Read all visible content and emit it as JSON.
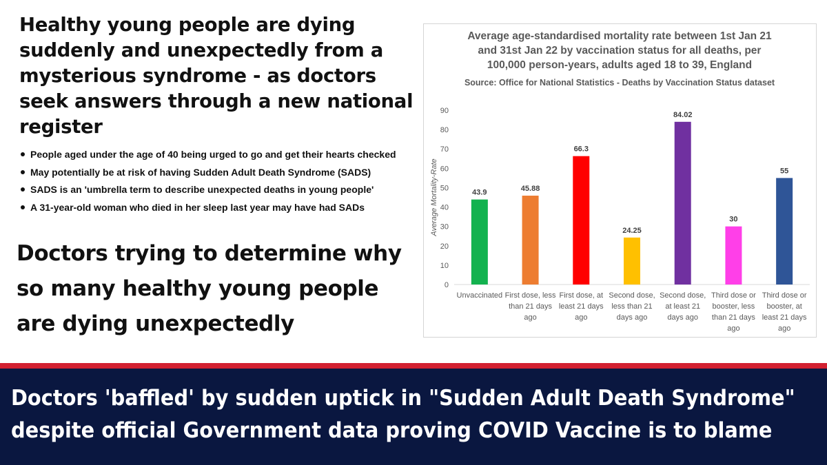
{
  "headline": "Healthy young people are dying suddenly and unexpectedly from a mysterious syndrome - as doctors seek answers through a new national register",
  "bullets": [
    "People aged under the age of 40 being urged to go and get their hearts checked",
    "May potentially be at risk of having Sudden Adult Death Syndrome (SADS)",
    "SADS is an 'umbrella term to describe unexpected deaths in young people'",
    "A 31-year-old woman who died in her sleep last year may have had SADs"
  ],
  "subheadline": "Doctors trying to determine why so many healthy young people are dying unexpectedly",
  "banner": {
    "line1": "Doctors 'baffled' by sudden uptick in \"Sudden Adult Death Syndrome\"",
    "line2": "despite official Government data proving COVID Vaccine is to blame"
  },
  "chart_data": {
    "type": "bar",
    "title_lines": [
      "Average age-standardised mortality rate between 1st Jan 21",
      "and  31st Jan 22 by vaccination status for all deaths, per",
      "100,000 person-years, adults aged 18 to 39, England"
    ],
    "subtitle": "Source: Office for National Statistics - Deaths by Vaccination Status dataset",
    "ylabel": "Average Mortality-Rate",
    "xlabel": "",
    "ylim": [
      0,
      90
    ],
    "yticks": [
      0,
      10,
      20,
      30,
      40,
      50,
      60,
      70,
      80,
      90
    ],
    "grid": false,
    "categories": [
      [
        "Unvaccinated"
      ],
      [
        "First dose, less",
        "than 21 days",
        "ago"
      ],
      [
        "First dose, at",
        "least 21 days",
        "ago"
      ],
      [
        "Second dose,",
        "less than 21",
        "days ago"
      ],
      [
        "Second dose,",
        "at least 21",
        "days ago"
      ],
      [
        "Third dose or",
        "booster, less",
        "than 21 days",
        "ago"
      ],
      [
        "Third dose or",
        "booster, at",
        "least 21 days",
        "ago"
      ]
    ],
    "values": [
      43.9,
      45.88,
      66.3,
      24.25,
      84.02,
      30,
      55
    ],
    "data_labels": [
      "43.9",
      "45.88",
      "66.3",
      "24.25",
      "84.02",
      "30",
      "55"
    ],
    "colors": [
      "#13b24f",
      "#ed7d31",
      "#ff0000",
      "#ffc000",
      "#7030a0",
      "#ff3fe8",
      "#2f5597"
    ]
  }
}
